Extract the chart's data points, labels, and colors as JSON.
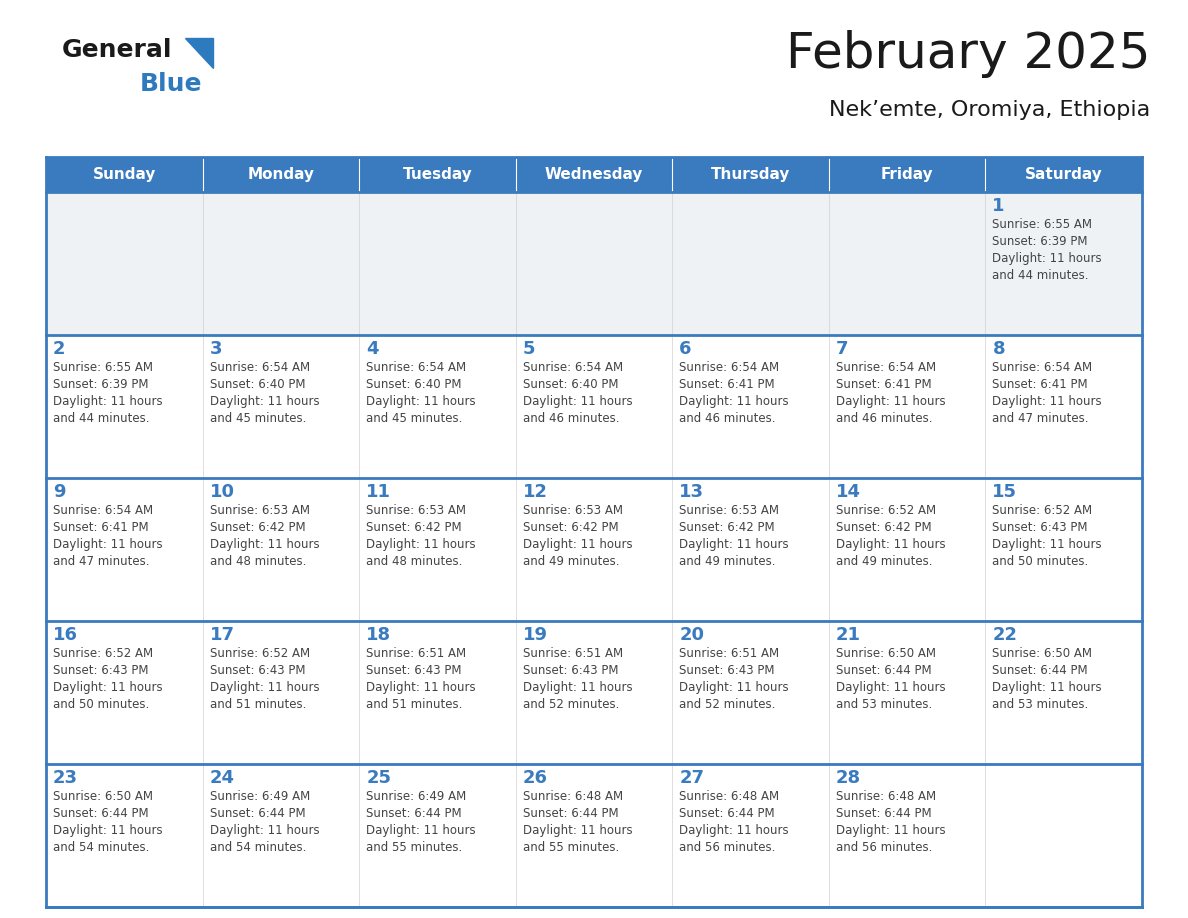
{
  "title": "February 2025",
  "subtitle": "Nek’emte, Oromiya, Ethiopia",
  "days_of_week": [
    "Sunday",
    "Monday",
    "Tuesday",
    "Wednesday",
    "Thursday",
    "Friday",
    "Saturday"
  ],
  "header_bg": "#3a7abf",
  "header_text": "#ffffff",
  "cell_bg_gray": "#eef2f5",
  "cell_bg_white": "#ffffff",
  "border_color": "#3a7abf",
  "day_number_color": "#3a7abf",
  "text_color": "#444444",
  "title_color": "#1a1a1a",
  "logo_text_color": "#1a1a1a",
  "logo_blue_color": "#2e7abf",
  "triangle_color": "#2e7abf",
  "calendar_data": [
    [
      null,
      null,
      null,
      null,
      null,
      null,
      {
        "day": 1,
        "sunrise": "6:55 AM",
        "sunset": "6:39 PM",
        "daylight": "11 hours and 44 minutes."
      }
    ],
    [
      {
        "day": 2,
        "sunrise": "6:55 AM",
        "sunset": "6:39 PM",
        "daylight": "11 hours and 44 minutes."
      },
      {
        "day": 3,
        "sunrise": "6:54 AM",
        "sunset": "6:40 PM",
        "daylight": "11 hours and 45 minutes."
      },
      {
        "day": 4,
        "sunrise": "6:54 AM",
        "sunset": "6:40 PM",
        "daylight": "11 hours and 45 minutes."
      },
      {
        "day": 5,
        "sunrise": "6:54 AM",
        "sunset": "6:40 PM",
        "daylight": "11 hours and 46 minutes."
      },
      {
        "day": 6,
        "sunrise": "6:54 AM",
        "sunset": "6:41 PM",
        "daylight": "11 hours and 46 minutes."
      },
      {
        "day": 7,
        "sunrise": "6:54 AM",
        "sunset": "6:41 PM",
        "daylight": "11 hours and 46 minutes."
      },
      {
        "day": 8,
        "sunrise": "6:54 AM",
        "sunset": "6:41 PM",
        "daylight": "11 hours and 47 minutes."
      }
    ],
    [
      {
        "day": 9,
        "sunrise": "6:54 AM",
        "sunset": "6:41 PM",
        "daylight": "11 hours and 47 minutes."
      },
      {
        "day": 10,
        "sunrise": "6:53 AM",
        "sunset": "6:42 PM",
        "daylight": "11 hours and 48 minutes."
      },
      {
        "day": 11,
        "sunrise": "6:53 AM",
        "sunset": "6:42 PM",
        "daylight": "11 hours and 48 minutes."
      },
      {
        "day": 12,
        "sunrise": "6:53 AM",
        "sunset": "6:42 PM",
        "daylight": "11 hours and 49 minutes."
      },
      {
        "day": 13,
        "sunrise": "6:53 AM",
        "sunset": "6:42 PM",
        "daylight": "11 hours and 49 minutes."
      },
      {
        "day": 14,
        "sunrise": "6:52 AM",
        "sunset": "6:42 PM",
        "daylight": "11 hours and 49 minutes."
      },
      {
        "day": 15,
        "sunrise": "6:52 AM",
        "sunset": "6:43 PM",
        "daylight": "11 hours and 50 minutes."
      }
    ],
    [
      {
        "day": 16,
        "sunrise": "6:52 AM",
        "sunset": "6:43 PM",
        "daylight": "11 hours and 50 minutes."
      },
      {
        "day": 17,
        "sunrise": "6:52 AM",
        "sunset": "6:43 PM",
        "daylight": "11 hours and 51 minutes."
      },
      {
        "day": 18,
        "sunrise": "6:51 AM",
        "sunset": "6:43 PM",
        "daylight": "11 hours and 51 minutes."
      },
      {
        "day": 19,
        "sunrise": "6:51 AM",
        "sunset": "6:43 PM",
        "daylight": "11 hours and 52 minutes."
      },
      {
        "day": 20,
        "sunrise": "6:51 AM",
        "sunset": "6:43 PM",
        "daylight": "11 hours and 52 minutes."
      },
      {
        "day": 21,
        "sunrise": "6:50 AM",
        "sunset": "6:44 PM",
        "daylight": "11 hours and 53 minutes."
      },
      {
        "day": 22,
        "sunrise": "6:50 AM",
        "sunset": "6:44 PM",
        "daylight": "11 hours and 53 minutes."
      }
    ],
    [
      {
        "day": 23,
        "sunrise": "6:50 AM",
        "sunset": "6:44 PM",
        "daylight": "11 hours and 54 minutes."
      },
      {
        "day": 24,
        "sunrise": "6:49 AM",
        "sunset": "6:44 PM",
        "daylight": "11 hours and 54 minutes."
      },
      {
        "day": 25,
        "sunrise": "6:49 AM",
        "sunset": "6:44 PM",
        "daylight": "11 hours and 55 minutes."
      },
      {
        "day": 26,
        "sunrise": "6:48 AM",
        "sunset": "6:44 PM",
        "daylight": "11 hours and 55 minutes."
      },
      {
        "day": 27,
        "sunrise": "6:48 AM",
        "sunset": "6:44 PM",
        "daylight": "11 hours and 56 minutes."
      },
      {
        "day": 28,
        "sunrise": "6:48 AM",
        "sunset": "6:44 PM",
        "daylight": "11 hours and 56 minutes."
      },
      null
    ]
  ]
}
